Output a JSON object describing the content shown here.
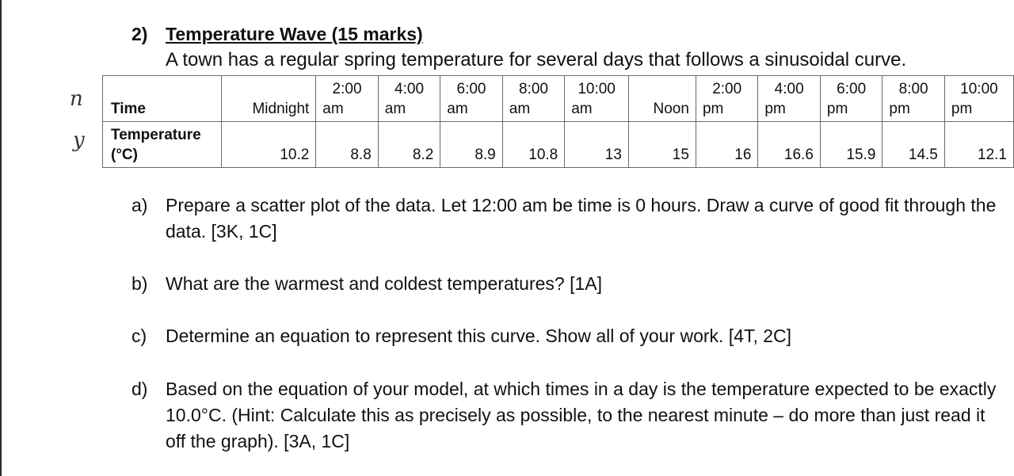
{
  "question": {
    "number": "2)",
    "title": "Temperature Wave (15 marks)",
    "intro": "A town has a regular spring temperature for several days that follows a sinusoidal curve."
  },
  "table": {
    "row_labels": {
      "time": "Time",
      "temperature": "Temperature (°C)"
    },
    "times": [
      {
        "line1": "",
        "line2": "Midnight"
      },
      {
        "line1": "2:00",
        "line2": "am"
      },
      {
        "line1": "4:00",
        "line2": "am"
      },
      {
        "line1": "6:00",
        "line2": "am"
      },
      {
        "line1": "8:00",
        "line2": "am"
      },
      {
        "line1": "10:00",
        "line2": "am"
      },
      {
        "line1": "",
        "line2": "Noon"
      },
      {
        "line1": "2:00",
        "line2": "pm"
      },
      {
        "line1": "4:00",
        "line2": "pm"
      },
      {
        "line1": "6:00",
        "line2": "pm"
      },
      {
        "line1": "8:00",
        "line2": "pm"
      },
      {
        "line1": "10:00",
        "line2": "pm"
      }
    ],
    "temperatures": [
      "10.2",
      "8.8",
      "8.2",
      "8.9",
      "10.8",
      "13",
      "15",
      "16",
      "16.6",
      "15.9",
      "14.5",
      "12.1"
    ]
  },
  "handwriting": {
    "mark1": "n",
    "mark2": "y"
  },
  "parts": [
    {
      "letter": "a)",
      "text": "Prepare a scatter plot of the data.  Let 12:00 am be time is 0 hours. Draw a curve of good fit through the data. [3K, 1C]"
    },
    {
      "letter": "b)",
      "text": "What are the warmest and coldest temperatures? [1A]"
    },
    {
      "letter": "c)",
      "text": "Determine an equation to represent this curve.  Show all of your work. [4T, 2C]"
    },
    {
      "letter": "d)",
      "text": "Based on the equation of your model, at which times in a day is the temperature expected to be exactly 10.0°C. (Hint: Calculate this as precisely as possible, to the nearest minute – do more than just read it off the graph). [3A, 1C]"
    }
  ]
}
